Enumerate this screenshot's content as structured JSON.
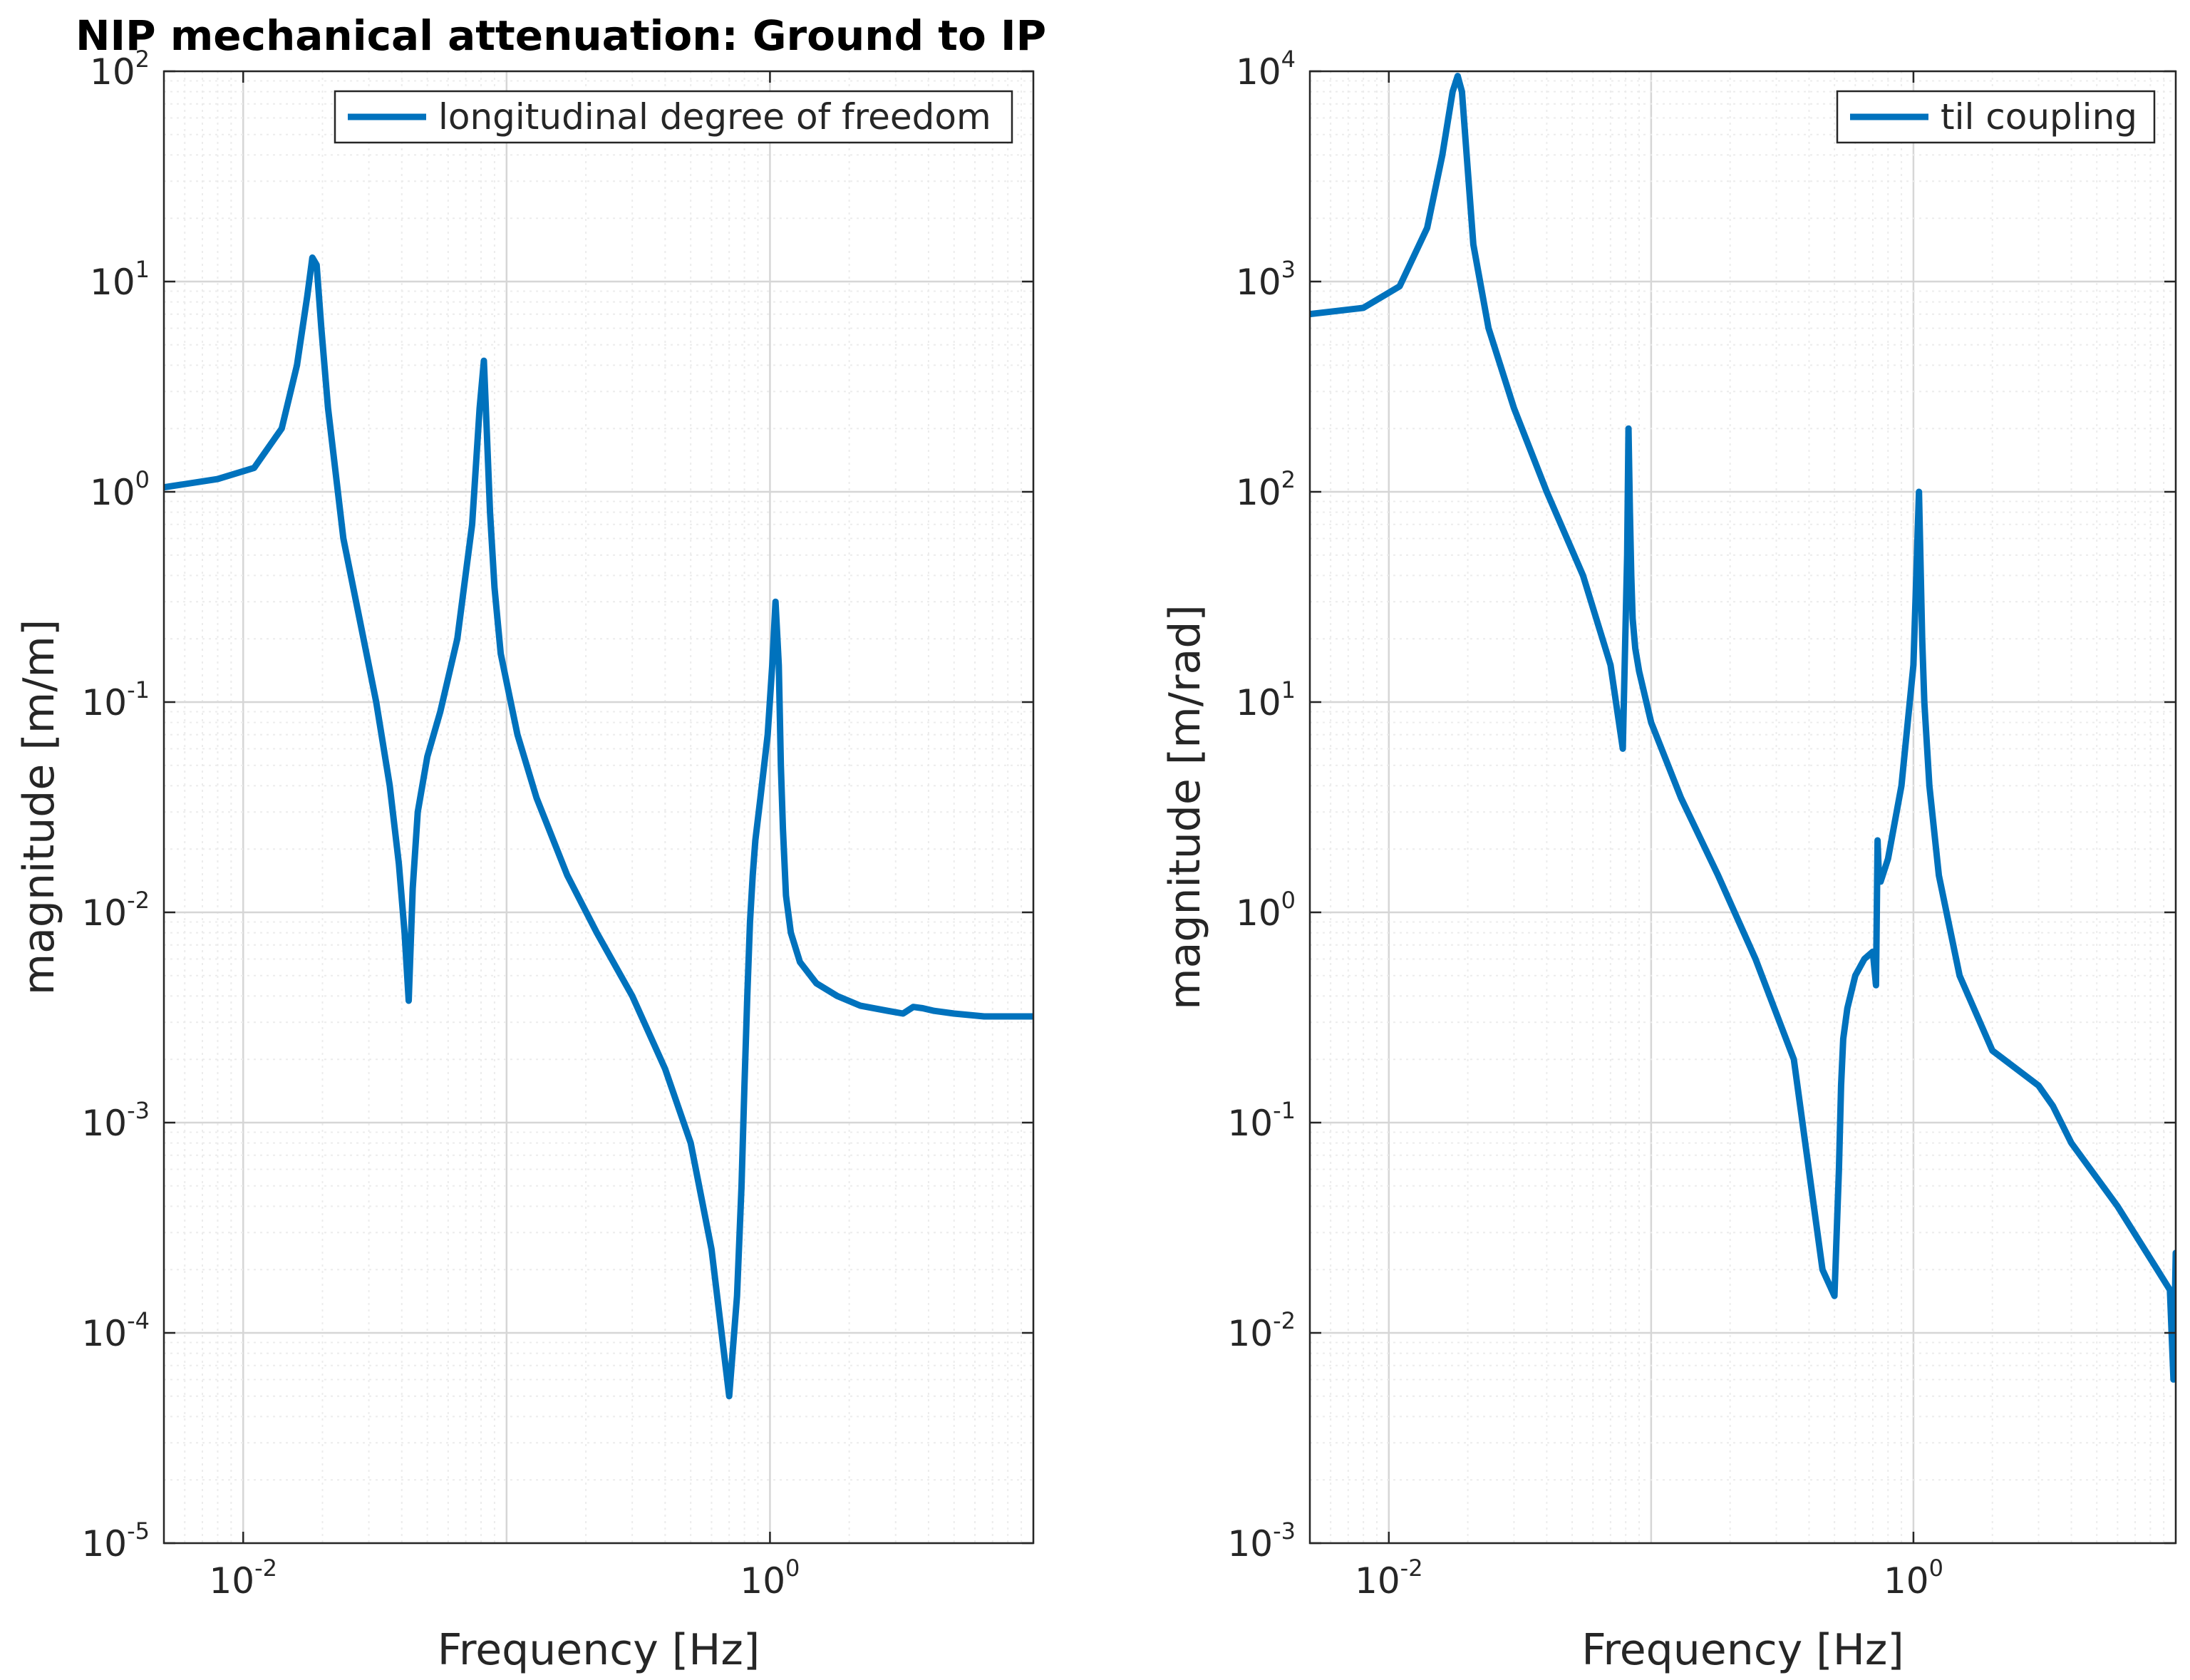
{
  "figure": {
    "title": "NIP mechanical attenuation: Ground to IP"
  },
  "colors": {
    "line": "#0072BD",
    "axis": "#262626",
    "grid_major": "#d6d6d6",
    "grid_minor": "#ececec"
  },
  "chart_data": [
    {
      "type": "line",
      "title": "NIP mechanical attenuation: Ground to IP",
      "xlabel": "Frequency [Hz]",
      "ylabel": "magnitude [m/m]",
      "xscale": "log",
      "yscale": "log",
      "xlim": [
        0.005,
        10
      ],
      "ylim": [
        1e-05,
        100
      ],
      "xticks": [
        {
          "base": "10",
          "exp": "-2"
        },
        {
          "base": "10",
          "exp": "0"
        }
      ],
      "yticks": [
        {
          "base": "10",
          "exp": "-5"
        },
        {
          "base": "10",
          "exp": "-4"
        },
        {
          "base": "10",
          "exp": "-3"
        },
        {
          "base": "10",
          "exp": "-2"
        },
        {
          "base": "10",
          "exp": "-1"
        },
        {
          "base": "10",
          "exp": "0"
        },
        {
          "base": "10",
          "exp": "1"
        },
        {
          "base": "10",
          "exp": "2"
        }
      ],
      "grid": true,
      "legend": "top-right",
      "series": [
        {
          "name": "longitudinal degree of freedom",
          "x": [
            0.005,
            0.008,
            0.011,
            0.014,
            0.016,
            0.0175,
            0.0183,
            0.019,
            0.0198,
            0.021,
            0.024,
            0.028,
            0.032,
            0.036,
            0.039,
            0.041,
            0.0425,
            0.044,
            0.046,
            0.05,
            0.056,
            0.065,
            0.074,
            0.079,
            0.082,
            0.084,
            0.0865,
            0.09,
            0.095,
            0.11,
            0.13,
            0.17,
            0.22,
            0.3,
            0.4,
            0.5,
            0.6,
            0.7,
            0.75,
            0.78,
            0.8,
            0.82,
            0.84,
            0.86,
            0.88,
            0.92,
            0.98,
            1.02,
            1.05,
            1.08,
            1.1,
            1.12,
            1.15,
            1.2,
            1.3,
            1.5,
            1.8,
            2.2,
            2.8,
            3.2,
            3.5,
            3.8,
            4.2,
            5.0,
            6.5,
            10.0
          ],
          "y": [
            1.05,
            1.15,
            1.3,
            2.0,
            4.0,
            8.5,
            13.0,
            12.0,
            6.0,
            2.5,
            0.6,
            0.23,
            0.1,
            0.04,
            0.017,
            0.008,
            0.0038,
            0.013,
            0.03,
            0.055,
            0.09,
            0.2,
            0.7,
            2.5,
            4.2,
            2.0,
            0.8,
            0.35,
            0.17,
            0.07,
            0.035,
            0.015,
            0.008,
            0.004,
            0.0018,
            0.0008,
            0.00025,
            5e-05,
            0.00015,
            0.0005,
            0.0015,
            0.004,
            0.009,
            0.015,
            0.022,
            0.035,
            0.07,
            0.15,
            0.3,
            0.15,
            0.05,
            0.025,
            0.012,
            0.008,
            0.0058,
            0.0046,
            0.004,
            0.0036,
            0.0034,
            0.0033,
            0.00355,
            0.0035,
            0.0034,
            0.0033,
            0.0032,
            0.0032
          ]
        }
      ]
    },
    {
      "type": "line",
      "title": "",
      "xlabel": "Frequency [Hz]",
      "ylabel": "magnitude [m/rad]",
      "xscale": "log",
      "yscale": "log",
      "xlim": [
        0.005,
        10
      ],
      "ylim": [
        0.001,
        10000
      ],
      "xticks": [
        {
          "base": "10",
          "exp": "-2"
        },
        {
          "base": "10",
          "exp": "0"
        }
      ],
      "yticks": [
        {
          "base": "10",
          "exp": "-3"
        },
        {
          "base": "10",
          "exp": "-2"
        },
        {
          "base": "10",
          "exp": "-1"
        },
        {
          "base": "10",
          "exp": "0"
        },
        {
          "base": "10",
          "exp": "1"
        },
        {
          "base": "10",
          "exp": "2"
        },
        {
          "base": "10",
          "exp": "3"
        },
        {
          "base": "10",
          "exp": "4"
        }
      ],
      "grid": true,
      "legend": "top-right",
      "series": [
        {
          "name": "til coupling",
          "x": [
            0.005,
            0.008,
            0.011,
            0.014,
            0.016,
            0.0175,
            0.0183,
            0.019,
            0.0198,
            0.021,
            0.024,
            0.03,
            0.04,
            0.055,
            0.07,
            0.078,
            0.081,
            0.082,
            0.083,
            0.084,
            0.085,
            0.087,
            0.09,
            0.1,
            0.13,
            0.18,
            0.25,
            0.35,
            0.45,
            0.5,
            0.52,
            0.53,
            0.54,
            0.56,
            0.6,
            0.65,
            0.7,
            0.72,
            0.73,
            0.74,
            0.75,
            0.8,
            0.9,
            1.0,
            1.05,
            1.08,
            1.1,
            1.15,
            1.25,
            1.5,
            2.0,
            3.0,
            3.4,
            4.0,
            6.0,
            8.5,
            9.5,
            9.8,
            10.0
          ],
          "y": [
            700,
            750,
            950,
            1800,
            4000,
            8000,
            9500,
            8000,
            4000,
            1500,
            600,
            250,
            100,
            40,
            15,
            6,
            50,
            200,
            80,
            40,
            25,
            18,
            14,
            8,
            3.5,
            1.5,
            0.6,
            0.2,
            0.02,
            0.015,
            0.06,
            0.15,
            0.25,
            0.35,
            0.5,
            0.6,
            0.65,
            0.45,
            2.2,
            1.4,
            1.4,
            1.8,
            4.0,
            15,
            100,
            20,
            10,
            4,
            1.5,
            0.5,
            0.22,
            0.15,
            0.12,
            0.08,
            0.04,
            0.02,
            0.016,
            0.006,
            0.024
          ]
        }
      ]
    }
  ]
}
